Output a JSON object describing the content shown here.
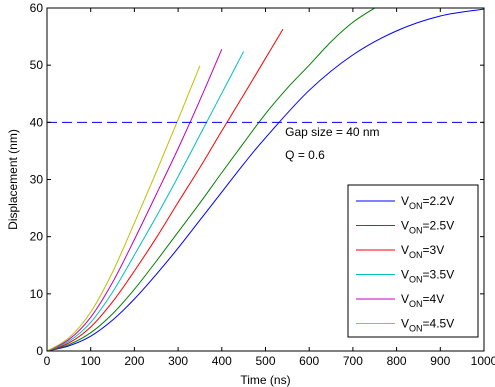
{
  "chart_data": {
    "type": "line",
    "xlabel": "Time (ns)",
    "ylabel": "Displacement (nm)",
    "xlim": [
      0,
      1000
    ],
    "ylim": [
      0,
      60
    ],
    "xticks": [
      0,
      100,
      200,
      300,
      400,
      500,
      600,
      700,
      800,
      900,
      1000
    ],
    "yticks": [
      0,
      10,
      20,
      30,
      40,
      50,
      60
    ],
    "grid": false,
    "legend_position": "bottom-right",
    "reference_line": {
      "y": 40,
      "style": "dashed",
      "color": "#0000ff"
    },
    "annotations": [
      {
        "text": "Gap size = 40 nm",
        "x": 545,
        "y": 38.3
      },
      {
        "text": "Q = 0.6",
        "x": 545,
        "y": 34.3
      }
    ],
    "series": [
      {
        "label_main": "V",
        "label_sub": "ON",
        "label_suffix": "=2.2V",
        "color": "#0000ff",
        "x": [
          0,
          50,
          100,
          150,
          200,
          250,
          300,
          350,
          400,
          450,
          500,
          600,
          700,
          800,
          900,
          1000
        ],
        "y": [
          0,
          0.9,
          2.6,
          5.4,
          9.1,
          13.4,
          18.0,
          22.9,
          27.8,
          32.7,
          37.3,
          45.6,
          51.8,
          56.0,
          58.6,
          59.8
        ]
      },
      {
        "label_main": "V",
        "label_sub": "ON",
        "label_suffix": "=2.5V",
        "color": "#008000",
        "x": [
          0,
          50,
          100,
          150,
          200,
          250,
          300,
          350,
          400,
          450,
          500,
          550,
          600,
          650,
          700,
          750
        ],
        "y": [
          0,
          1.1,
          3.2,
          6.5,
          10.8,
          15.7,
          20.8,
          25.9,
          31.2,
          36.4,
          41.5,
          46.0,
          50.0,
          54.1,
          57.5,
          60
        ]
      },
      {
        "label_main": "V",
        "label_sub": "ON",
        "label_suffix": "=3V",
        "color": "#ff0000",
        "x": [
          0,
          50,
          100,
          150,
          200,
          250,
          300,
          350,
          400,
          450,
          500,
          540
        ],
        "y": [
          0,
          1.4,
          4.2,
          8.6,
          14.0,
          19.8,
          26.0,
          32.1,
          38.5,
          44.8,
          51.2,
          56.3
        ]
      },
      {
        "label_main": "V",
        "label_sub": "ON",
        "label_suffix": "=3.5V",
        "color": "#00bfbf",
        "x": [
          0,
          50,
          100,
          150,
          200,
          250,
          300,
          350,
          400,
          450
        ],
        "y": [
          0,
          1.7,
          5.0,
          10.3,
          16.8,
          23.5,
          30.5,
          37.8,
          45.1,
          52.4
        ]
      },
      {
        "label_main": "V",
        "label_sub": "ON",
        "label_suffix": "=4V",
        "color": "#bf00bf",
        "x": [
          0,
          50,
          100,
          150,
          200,
          250,
          300,
          350,
          400
        ],
        "y": [
          0,
          2.0,
          5.9,
          12.0,
          19.5,
          27.4,
          35.4,
          43.9,
          52.8
        ]
      },
      {
        "label_main": "V",
        "label_sub": "ON",
        "label_suffix": "=4.5V",
        "color": "#bfbf00",
        "x": [
          0,
          50,
          100,
          150,
          200,
          250,
          300,
          350
        ],
        "y": [
          0,
          2.3,
          6.8,
          13.8,
          22.4,
          31.3,
          40.5,
          49.9
        ]
      }
    ]
  }
}
